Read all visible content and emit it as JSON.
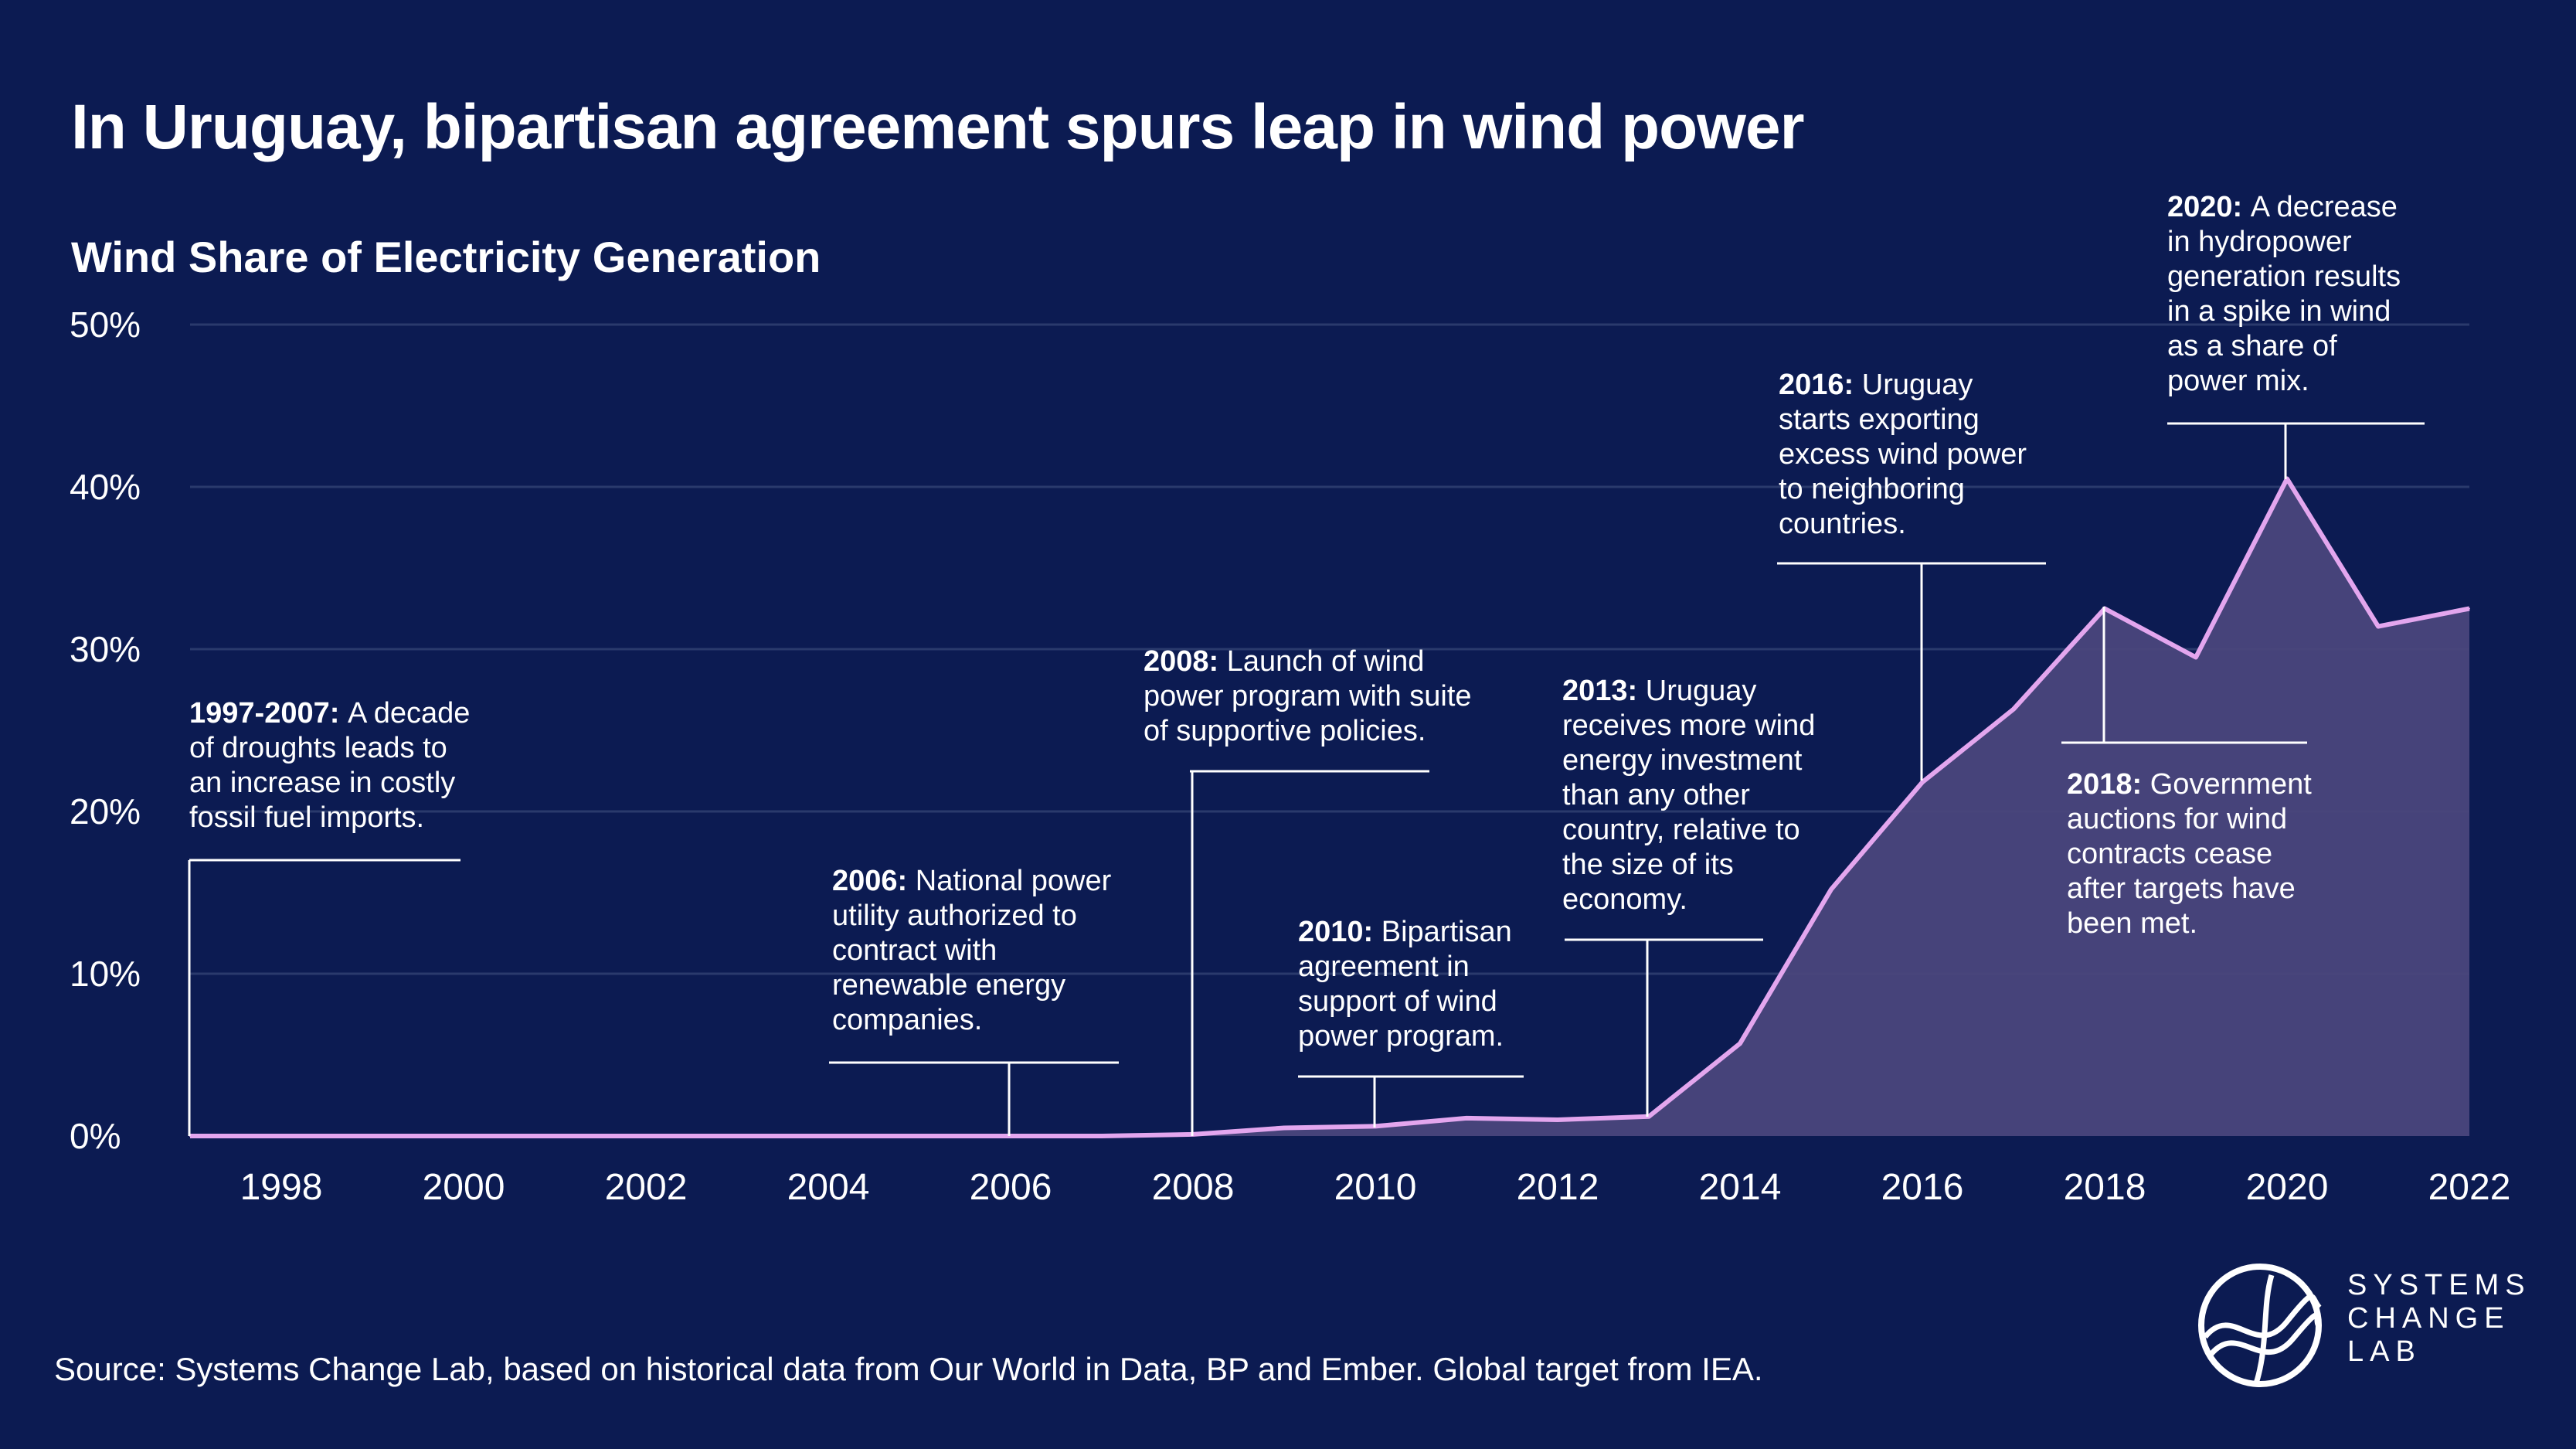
{
  "title": "In Uruguay, bipartisan agreement spurs leap in wind power",
  "subtitle": "Wind Share of Electricity Generation",
  "source": "Source: Systems Change Lab, based on historical data from Our World in Data, BP and Ember. Global target from IEA.",
  "logo": {
    "icon": "systems-change-lab-logo-icon",
    "lines": [
      "SYSTEMS",
      "CHANGE",
      "LAB"
    ]
  },
  "colors": {
    "background": "#0c1b52",
    "line": "#e3a6ee",
    "area": "#4a467c",
    "gridline": "#2a3a6c",
    "text": "#ffffff"
  },
  "chart_data": {
    "type": "area",
    "x": [
      1997,
      1998,
      1999,
      2000,
      2001,
      2002,
      2003,
      2004,
      2005,
      2006,
      2007,
      2008,
      2009,
      2010,
      2011,
      2012,
      2013,
      2014,
      2015,
      2016,
      2017,
      2018,
      2019,
      2020,
      2021,
      2022
    ],
    "series": [
      {
        "values": [
          0,
          0,
          0,
          0,
          0,
          0,
          0,
          0,
          0,
          0,
          0,
          0.1,
          0.5,
          0.6,
          1.1,
          1.0,
          1.2,
          5.7,
          15.2,
          21.8,
          26.3,
          32.5,
          29.5,
          40.5,
          31.4,
          32.5
        ]
      }
    ],
    "xlim": [
      1997,
      2022
    ],
    "ylim": [
      0,
      50
    ],
    "x_ticks": [
      "1998",
      "2000",
      "2002",
      "2004",
      "2006",
      "2008",
      "2010",
      "2012",
      "2014",
      "2016",
      "2018",
      "2020",
      "2022"
    ],
    "y_ticks": [
      "0%",
      "10%",
      "20%",
      "30%",
      "40%",
      "50%"
    ],
    "grid": true,
    "annotations": [
      {
        "year": 1997,
        "value": 0,
        "bold": "1997-2007:",
        "lines": [
          "A decade",
          "of droughts leads to",
          "an increase in costly",
          "fossil fuel imports."
        ]
      },
      {
        "year": 2006,
        "value": 0,
        "bold": "2006:",
        "lines": [
          "National power",
          "utility authorized to",
          "contract with",
          "renewable energy",
          "companies."
        ]
      },
      {
        "year": 2008,
        "value": 0.1,
        "bold": "2008:",
        "lines": [
          "Launch of wind",
          "power program with suite",
          "of supportive policies."
        ]
      },
      {
        "year": 2010,
        "value": 0.6,
        "bold": "2010:",
        "lines": [
          "Bipartisan",
          "agreement in",
          "support of wind",
          "power program."
        ]
      },
      {
        "year": 2013,
        "value": 1.2,
        "bold": "2013:",
        "lines": [
          "Uruguay",
          "receives more wind",
          "energy investment",
          "than any other",
          "country, relative to",
          "the size of its",
          "economy."
        ]
      },
      {
        "year": 2016,
        "value": 21.8,
        "bold": "2016:",
        "lines": [
          "Uruguay",
          "starts exporting",
          "excess wind power",
          "to neighboring",
          "countries."
        ]
      },
      {
        "year": 2018,
        "value": 32.5,
        "bold": "2018:",
        "lines": [
          "Government",
          "auctions for wind",
          "contracts cease",
          "after targets have",
          "been met."
        ]
      },
      {
        "year": 2020,
        "value": 40.5,
        "bold": "2020:",
        "lines": [
          "A decrease",
          "in hydropower",
          "generation results",
          "in a spike in wind",
          "as a share of",
          "power mix."
        ]
      }
    ]
  }
}
